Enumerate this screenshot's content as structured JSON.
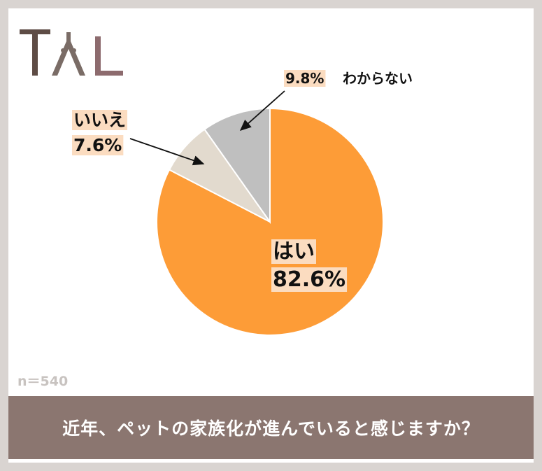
{
  "logo": {
    "text": "TAL",
    "colors": {
      "t": "#5e4c45",
      "a": "#7a6c66",
      "l": "#8d6b6e"
    }
  },
  "chart_data": {
    "type": "pie",
    "title": "",
    "slices": [
      {
        "label": "はい",
        "value": 82.6,
        "display": "82.6%",
        "color": "#fd9c37"
      },
      {
        "label": "いいえ",
        "value": 7.6,
        "display": "7.6%",
        "color": "#e2dace"
      },
      {
        "label": "わからない",
        "value": 9.8,
        "display": "9.8%",
        "color": "#bfbfbf"
      }
    ],
    "start_angle": "12 o'clock",
    "direction": "clockwise",
    "label_highlight_color": "#fbdcc0"
  },
  "sample_size": "n＝540",
  "question": "近年、ペットの家族化が進んでいると感じますか？"
}
